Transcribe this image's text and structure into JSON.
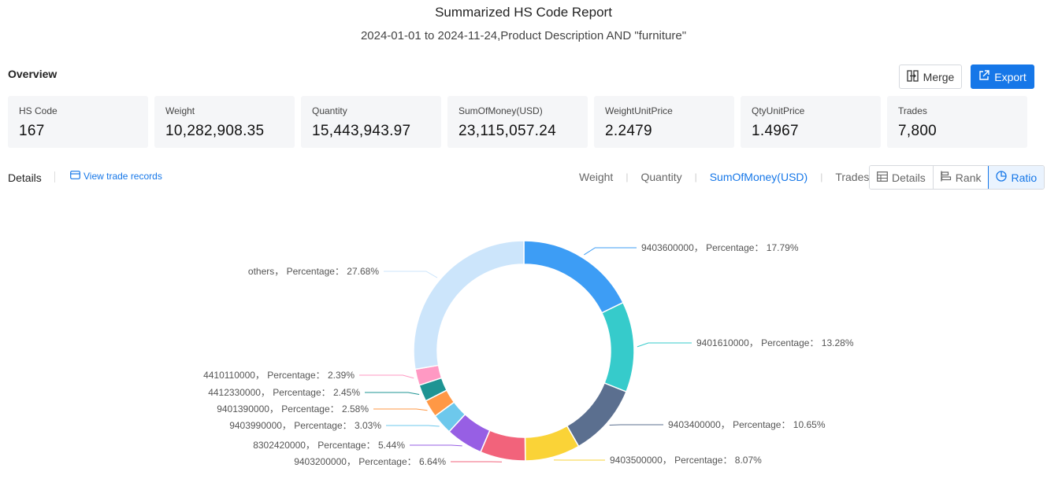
{
  "header": {
    "title": "Summarized HS Code Report",
    "subtitle": "2024-01-01 to 2024-11-24,Product Description AND \"furniture\""
  },
  "overview": {
    "label": "Overview",
    "merge_label": "Merge",
    "export_label": "Export",
    "cards": [
      {
        "label": "HS Code",
        "value": "167"
      },
      {
        "label": "Weight",
        "value": "10,282,908.35"
      },
      {
        "label": "Quantity",
        "value": "15,443,943.97"
      },
      {
        "label": "SumOfMoney(USD)",
        "value": "23,115,057.24"
      },
      {
        "label": "WeightUnitPrice",
        "value": "2.2479"
      },
      {
        "label": "QtyUnitPrice",
        "value": "1.4967"
      },
      {
        "label": "Trades",
        "value": "7,800"
      }
    ]
  },
  "details": {
    "label": "Details",
    "view_records_label": "View trade records",
    "metric_tabs": [
      "Weight",
      "Quantity",
      "SumOfMoney(USD)",
      "Trades"
    ],
    "active_metric": "SumOfMoney(USD)",
    "view_buttons": [
      {
        "label": "Details",
        "icon": "table-icon"
      },
      {
        "label": "Rank",
        "icon": "bar-rank-icon"
      },
      {
        "label": "Ratio",
        "icon": "pie-icon"
      }
    ],
    "active_view": "Ratio"
  },
  "chart_data": {
    "type": "pie",
    "variant": "donut",
    "percentage_label": "Percentage：",
    "slices": [
      {
        "name": "9403600000",
        "value": 17.79,
        "color": "#3d9df5"
      },
      {
        "name": "9401610000",
        "value": 13.28,
        "color": "#36cbcb"
      },
      {
        "name": "9403400000",
        "value": 10.65,
        "color": "#5b6f8f"
      },
      {
        "name": "9403500000",
        "value": 8.07,
        "color": "#fad337"
      },
      {
        "name": "9403200000",
        "value": 6.64,
        "color": "#f2637b"
      },
      {
        "name": "8302420000",
        "value": 5.44,
        "color": "#975fe4"
      },
      {
        "name": "9403990000",
        "value": 3.03,
        "color": "#6dc8ec"
      },
      {
        "name": "9401390000",
        "value": 2.58,
        "color": "#ff9845"
      },
      {
        "name": "4412330000",
        "value": 2.45,
        "color": "#1e9493"
      },
      {
        "name": "4410110000",
        "value": 2.39,
        "color": "#ff99c3"
      },
      {
        "name": "others",
        "value": 27.68,
        "color": "#cce5fb"
      }
    ]
  }
}
